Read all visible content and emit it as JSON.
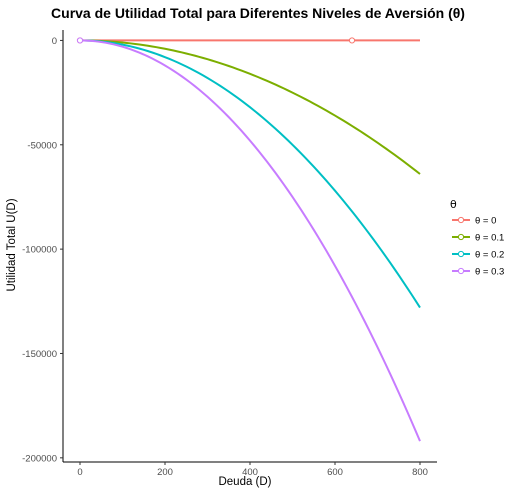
{
  "chart_data": {
    "type": "line",
    "title": "Curva de Utilidad Total para Diferentes Niveles de Aversión (θ)",
    "xlabel": "Deuda (D)",
    "ylabel": "Utilidad Total U(D)",
    "xlim": [
      0,
      800
    ],
    "ylim": [
      -200000,
      0
    ],
    "x_ticks": [
      0,
      200,
      400,
      600,
      800
    ],
    "x_tick_labels": [
      "0",
      "200",
      "400",
      "600",
      "800"
    ],
    "y_ticks": [
      0,
      -50000,
      -100000,
      -150000,
      -200000
    ],
    "y_tick_labels": [
      "0",
      "-50000",
      "-100000",
      "-150000",
      "-200000"
    ],
    "grid": false,
    "legend": {
      "title": "θ",
      "position": "right"
    },
    "x": [
      0,
      100,
      200,
      300,
      400,
      500,
      600,
      700,
      800
    ],
    "series": [
      {
        "name": "θ = 0",
        "color": "#F8766D",
        "values": [
          0,
          0,
          0,
          0,
          0,
          0,
          0,
          0,
          0
        ],
        "markers_at_x": [
          0,
          640
        ]
      },
      {
        "name": "θ = 0.1",
        "color": "#7CAE00",
        "values": [
          0,
          -1000,
          -4000,
          -9000,
          -16000,
          -25000,
          -36000,
          -49000,
          -64000
        ],
        "markers_at_x": []
      },
      {
        "name": "θ = 0.2",
        "color": "#00BFC4",
        "values": [
          0,
          -2000,
          -8000,
          -18000,
          -32000,
          -50000,
          -72000,
          -98000,
          -128000
        ],
        "markers_at_x": []
      },
      {
        "name": "θ = 0.3",
        "color": "#C77CFF",
        "values": [
          0,
          -3000,
          -12000,
          -27000,
          -48000,
          -75000,
          -108000,
          -147000,
          -192000
        ],
        "markers_at_x": [
          0
        ]
      }
    ]
  }
}
